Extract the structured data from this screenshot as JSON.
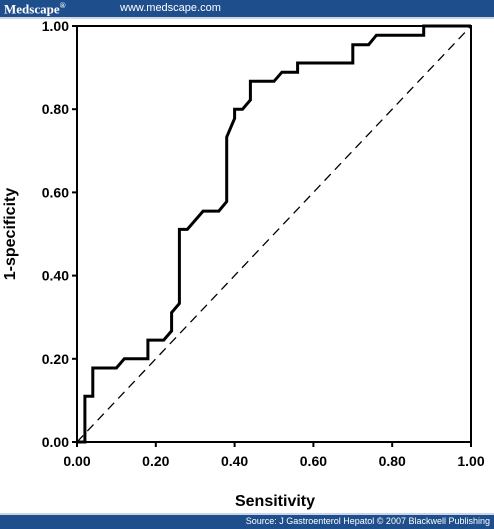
{
  "header": {
    "brand": "Medscape",
    "brand_mark": "®",
    "url": "www.medscape.com"
  },
  "footer": {
    "source": "Source: J Gastroenterol Hepatol © 2007 Blackwell Publishing"
  },
  "colors": {
    "banner": "#1f4e8c",
    "banner_accent": "#c9d6e8",
    "roc_curve": "#000000",
    "reference_line": "#000000"
  },
  "chart_data": {
    "type": "line",
    "title": "",
    "xlabel": "Sensitivity",
    "ylabel": "1-specificity",
    "xlim": [
      0,
      1
    ],
    "ylim": [
      0,
      1
    ],
    "x_ticks": [
      "0.00",
      "0.20",
      "0.40",
      "0.60",
      "0.80",
      "1.00"
    ],
    "y_ticks": [
      "0.00",
      "0.20",
      "0.40",
      "0.60",
      "0.80",
      "1.00"
    ],
    "grid": false,
    "legend": "none",
    "series": [
      {
        "style": "solid",
        "points": [
          [
            0.0,
            0.0
          ],
          [
            0.02,
            0.0
          ],
          [
            0.02,
            0.11
          ],
          [
            0.04,
            0.11
          ],
          [
            0.04,
            0.178
          ],
          [
            0.1,
            0.178
          ],
          [
            0.12,
            0.2
          ],
          [
            0.18,
            0.2
          ],
          [
            0.18,
            0.245
          ],
          [
            0.22,
            0.245
          ],
          [
            0.24,
            0.267
          ],
          [
            0.24,
            0.311
          ],
          [
            0.26,
            0.333
          ],
          [
            0.26,
            0.511
          ],
          [
            0.28,
            0.511
          ],
          [
            0.32,
            0.555
          ],
          [
            0.36,
            0.555
          ],
          [
            0.38,
            0.578
          ],
          [
            0.38,
            0.733
          ],
          [
            0.4,
            0.778
          ],
          [
            0.4,
            0.8
          ],
          [
            0.42,
            0.8
          ],
          [
            0.44,
            0.822
          ],
          [
            0.44,
            0.867
          ],
          [
            0.5,
            0.867
          ],
          [
            0.52,
            0.889
          ],
          [
            0.56,
            0.889
          ],
          [
            0.56,
            0.911
          ],
          [
            0.7,
            0.911
          ],
          [
            0.7,
            0.955
          ],
          [
            0.74,
            0.955
          ],
          [
            0.76,
            0.978
          ],
          [
            0.88,
            0.978
          ],
          [
            0.88,
            1.0
          ],
          [
            1.0,
            1.0
          ]
        ]
      },
      {
        "style": "dashed",
        "points": [
          [
            0.0,
            0.0
          ],
          [
            1.0,
            1.0
          ]
        ]
      }
    ]
  }
}
